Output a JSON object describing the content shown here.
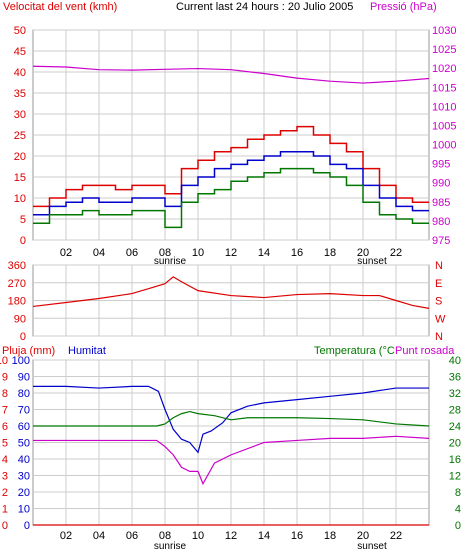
{
  "header": {
    "left_label": "Velocitat del vent (kmh)",
    "center_label": "Current last 24 hours : 20 Julio 2005",
    "right_label": "Pressió (hPa)"
  },
  "colors": {
    "red": "#dd0000",
    "blue": "#0000cc",
    "green": "#007700",
    "magenta": "#cc00cc",
    "grid": "#cccccc",
    "frame": "#000000"
  },
  "chart_data": [
    {
      "type": "line",
      "x_ticks": [
        "02",
        "04",
        "06",
        "08",
        "10",
        "12",
        "14",
        "16",
        "18",
        "20",
        "22"
      ],
      "annotations": [
        "sunrise",
        "sunset"
      ],
      "y_left": {
        "label": "Velocitat del vent (kmh)",
        "ticks": [
          0,
          5,
          10,
          15,
          20,
          25,
          30,
          35,
          40,
          45,
          50
        ],
        "range": [
          0,
          50
        ]
      },
      "y_right": {
        "label": "Pressió (hPa)",
        "ticks": [
          975,
          980,
          985,
          990,
          995,
          1000,
          1005,
          1010,
          1015,
          1020,
          1025,
          1030
        ],
        "range": [
          975,
          1030
        ]
      },
      "x_range": [
        0,
        24
      ],
      "series": [
        {
          "color": "red",
          "axis": "left",
          "x": [
            0,
            1,
            2,
            3,
            4,
            5,
            6,
            7,
            8,
            9,
            10,
            11,
            12,
            13,
            14,
            15,
            16,
            17,
            18,
            19,
            20,
            21,
            22,
            23,
            24
          ],
          "y": [
            8,
            10,
            12,
            13,
            13,
            12,
            13,
            13,
            11,
            17,
            19,
            21,
            22,
            24,
            25,
            26,
            27,
            25,
            23,
            21,
            17,
            13,
            10,
            9,
            9
          ]
        },
        {
          "color": "blue",
          "axis": "left",
          "x": [
            0,
            1,
            2,
            3,
            4,
            5,
            6,
            7,
            8,
            9,
            10,
            11,
            12,
            13,
            14,
            15,
            16,
            17,
            18,
            19,
            20,
            21,
            22,
            23,
            24
          ],
          "y": [
            6,
            8,
            9,
            10,
            9,
            9,
            10,
            10,
            8,
            13,
            15,
            17,
            18,
            19,
            20,
            21,
            21,
            20,
            18,
            17,
            13,
            10,
            8,
            7,
            7
          ]
        },
        {
          "color": "green",
          "axis": "left",
          "x": [
            0,
            1,
            2,
            3,
            4,
            5,
            6,
            7,
            8,
            9,
            10,
            11,
            12,
            13,
            14,
            15,
            16,
            17,
            18,
            19,
            20,
            21,
            22,
            23,
            24
          ],
          "y": [
            4,
            6,
            6,
            7,
            6,
            6,
            7,
            7,
            3,
            9,
            11,
            12,
            14,
            15,
            16,
            17,
            17,
            16,
            15,
            13,
            9,
            6,
            5,
            4,
            4
          ]
        },
        {
          "color": "magenta",
          "axis": "right",
          "x": [
            0,
            2,
            4,
            6,
            8,
            10,
            12,
            14,
            16,
            18,
            20,
            22,
            24
          ],
          "y": [
            1020.5,
            1020.3,
            1019.6,
            1019.5,
            1019.7,
            1019.9,
            1019.6,
            1018.6,
            1017.4,
            1016.6,
            1016.1,
            1016.6,
            1017.3
          ]
        }
      ]
    },
    {
      "type": "line",
      "y_left": {
        "ticks": [
          0,
          90,
          180,
          270,
          360
        ],
        "range": [
          0,
          360
        ]
      },
      "y_right": {
        "ticks": [
          "N",
          "W",
          "S",
          "E",
          "N"
        ]
      },
      "x_range": [
        0,
        24
      ],
      "series": [
        {
          "color": "red",
          "axis": "left",
          "x": [
            0,
            2,
            4,
            6,
            7,
            8,
            8.5,
            9,
            10,
            12,
            14,
            16,
            18,
            20,
            21,
            22,
            23,
            24
          ],
          "y": [
            150,
            170,
            190,
            215,
            240,
            265,
            300,
            275,
            230,
            205,
            195,
            210,
            215,
            205,
            205,
            180,
            155,
            140
          ]
        }
      ]
    },
    {
      "type": "line",
      "top_labels": {
        "left": "Pluja (mm)",
        "mid": "Humitat",
        "right": "Temperatura (°C",
        "right2": "Punt rosada"
      },
      "y_left_rain": {
        "ticks": [
          0,
          1,
          2,
          3,
          4,
          5,
          6,
          7,
          8,
          9,
          10
        ],
        "range": [
          0,
          10
        ]
      },
      "y_left_hum": {
        "ticks": [
          0,
          10,
          20,
          30,
          40,
          50,
          60,
          70,
          80,
          90,
          100
        ],
        "range": [
          0,
          100
        ]
      },
      "y_right": {
        "ticks": [
          0,
          4,
          8,
          12,
          16,
          20,
          24,
          28,
          32,
          36,
          40
        ],
        "range": [
          0,
          40
        ]
      },
      "x_ticks": [
        "02",
        "04",
        "06",
        "08",
        "10",
        "12",
        "14",
        "16",
        "18",
        "20",
        "22"
      ],
      "annotations": [
        "sunrise",
        "sunset"
      ],
      "x_range": [
        0,
        24
      ],
      "series": [
        {
          "color": "blue",
          "axis": "hum",
          "x": [
            0,
            2,
            4,
            6,
            7,
            7.6,
            8,
            8.5,
            9,
            9.5,
            10,
            10.3,
            10.8,
            11.5,
            12,
            13,
            14,
            16,
            18,
            20,
            22,
            24
          ],
          "y": [
            84,
            84,
            83,
            84,
            84,
            81,
            70,
            58,
            52,
            50,
            44,
            55,
            57,
            62,
            68,
            72,
            74,
            76,
            78,
            80,
            83,
            83
          ]
        },
        {
          "color": "green",
          "axis": "temp",
          "x": [
            0,
            2,
            4,
            6,
            7.5,
            8,
            8.5,
            9,
            9.5,
            10,
            11,
            12,
            13,
            14,
            16,
            18,
            20,
            22,
            24
          ],
          "y": [
            24,
            24,
            24,
            24,
            24,
            24.5,
            26,
            27,
            27.5,
            27,
            26.5,
            25.5,
            26,
            26,
            26,
            25.8,
            25.5,
            24.5,
            24
          ]
        },
        {
          "color": "magenta",
          "axis": "temp",
          "x": [
            0,
            2,
            4,
            6,
            7.5,
            8,
            8.5,
            9,
            9.5,
            10,
            10.3,
            11,
            12,
            14,
            16,
            18,
            20,
            22,
            24
          ],
          "y": [
            20.5,
            20.5,
            20.5,
            20.5,
            20.5,
            19,
            17,
            14,
            13,
            13,
            10,
            15,
            17,
            20,
            20.5,
            21,
            21,
            21.5,
            21
          ]
        },
        {
          "color": "red",
          "axis": "rain",
          "x": [
            0,
            24
          ],
          "y": [
            0,
            0
          ]
        }
      ]
    }
  ]
}
